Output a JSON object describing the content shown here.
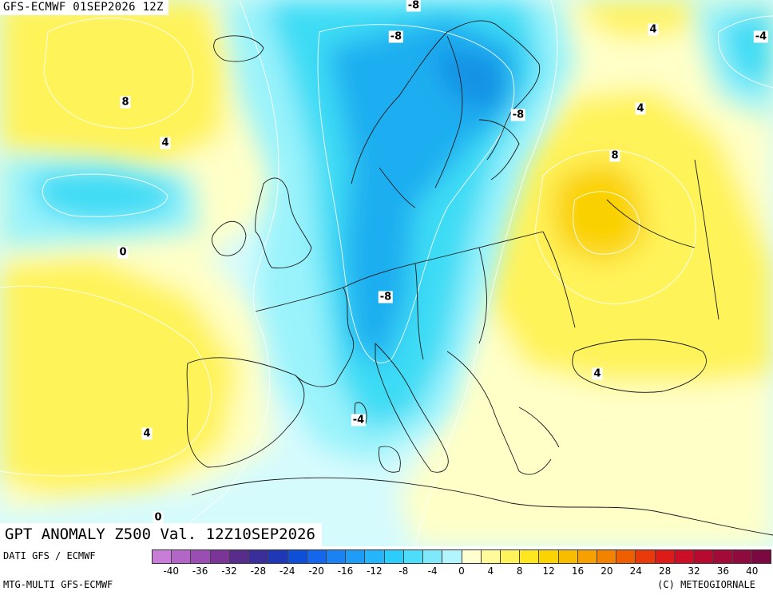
{
  "header": {
    "run_label": "GFS-ECMWF 01SEP2026 12Z",
    "title": "GPT ANOMALY Z500 Val. 12Z10SEP2026"
  },
  "footer": {
    "source_top": "DATI GFS / ECMWF",
    "source_bottom": "MTG-MULTI GFS-ECMWF",
    "copyright": "(C) METEOGIORNALE"
  },
  "legend": {
    "colors": [
      "#c87dd7",
      "#b266c6",
      "#9a4db3",
      "#7b3598",
      "#582c8a",
      "#3a2f9a",
      "#1e38b8",
      "#0f4fd8",
      "#1467ea",
      "#1a82f3",
      "#1e9df8",
      "#24b5fa",
      "#2ccdfb",
      "#4ddcfa",
      "#7fe8fb",
      "#b4f4fd",
      "#ffffd0",
      "#fffb9a",
      "#fff25a",
      "#fee71e",
      "#fbd400",
      "#f9bd00",
      "#f7a100",
      "#f38200",
      "#ef5f00",
      "#e83a0a",
      "#dd1c1a",
      "#cc0f26",
      "#b80a2e",
      "#a20a38",
      "#8e0a3f",
      "#7c0842"
    ],
    "ticks": [
      "-40",
      "-36",
      "-32",
      "-28",
      "-24",
      "-20",
      "-16",
      "-12",
      "-8",
      "-4",
      "0",
      "4",
      "8",
      "12",
      "16",
      "20",
      "24",
      "28",
      "32",
      "36",
      "40"
    ]
  },
  "contour_labels": [
    {
      "text": "-8"
    },
    {
      "text": "-8"
    },
    {
      "text": "4"
    },
    {
      "text": "-4"
    },
    {
      "text": "4"
    },
    {
      "text": "-8"
    },
    {
      "text": "8"
    },
    {
      "text": "8"
    },
    {
      "text": "4"
    },
    {
      "text": "0"
    },
    {
      "text": "-8"
    },
    {
      "text": "4"
    },
    {
      "text": "-4"
    },
    {
      "text": "4"
    },
    {
      "text": "0"
    }
  ],
  "colors": {
    "neutral_cyan": "#d6fbfd",
    "light_cyan": "#9af3fb",
    "cyan": "#3ddcf5",
    "blue": "#1eaef0",
    "deep_blue": "#1590e4",
    "light_yellow": "#ffffc8",
    "yellow": "#fff35a",
    "gold": "#fad100",
    "coastline": "#1a1a1a"
  }
}
